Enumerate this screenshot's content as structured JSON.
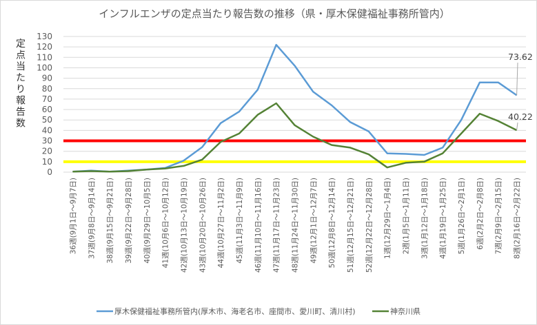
{
  "chart_data": {
    "type": "line",
    "title": "インフルエンザの定点当たり報告数の推移（県・厚木保健福祉事務所管内）",
    "ylabel": "定点当たり報告数",
    "xlabel": "",
    "ylim": [
      0,
      130
    ],
    "ytick_step": 10,
    "grid": true,
    "legend_position": "bottom",
    "categories": [
      "36週(9月1日～9月7日)",
      "37週(9月8日～9月14日)",
      "38週(9月15日～9月21日)",
      "39週(9月22日～9月28日)",
      "40週(9月29日～10月5日)",
      "41週(10月6日～10月12日)",
      "42週(10月13日～10月19日)",
      "43週(10月20日～10月26日)",
      "44週(10月27日～11月2日)",
      "45週(11月3日～11月9日)",
      "46週(11月10日～11月16日)",
      "47週(11月17日～11月23日)",
      "48週(11月24日～11月30日)",
      "49週(12月1日～12月7日)",
      "50週(12月8日～12月14日)",
      "51週(12月15日～12月21日)",
      "52週(12月22日～12月28日)",
      "1週(12月29日～1月4日)",
      "2週(1月5日～1月11日)",
      "3週(1月12日～1月18日)",
      "4週(1月19日～1月25日)",
      "5週(1月26日～2月1日)",
      "6週(2月2日～2月8日)",
      "7週(2月9日～2月15日)",
      "8週(2月16日～2月22日)"
    ],
    "series": [
      {
        "name": "厚木保健福祉事務所管内(厚木市、海老名市、座間市、愛川町、清川村)",
        "color": "#5b9bd5",
        "values": [
          0.5,
          1.5,
          0.5,
          1.5,
          2.5,
          4,
          11,
          24,
          47,
          58,
          79,
          122,
          102,
          77,
          64,
          48,
          39,
          18,
          17.5,
          16.5,
          23.5,
          50,
          86,
          86,
          73.62
        ],
        "last_label": "73.62"
      },
      {
        "name": "神奈川県",
        "color": "#548235",
        "values": [
          0.5,
          1,
          0.5,
          1,
          2.5,
          3.5,
          6,
          12,
          29,
          37,
          55,
          66,
          45,
          34,
          26,
          23.5,
          17,
          4.5,
          9,
          10,
          18,
          37,
          56,
          49,
          40.22
        ],
        "last_label": "40.22"
      }
    ],
    "reference_lines": [
      {
        "value": 30,
        "color": "#ff0000"
      },
      {
        "value": 10,
        "color": "#ffff00"
      }
    ]
  }
}
